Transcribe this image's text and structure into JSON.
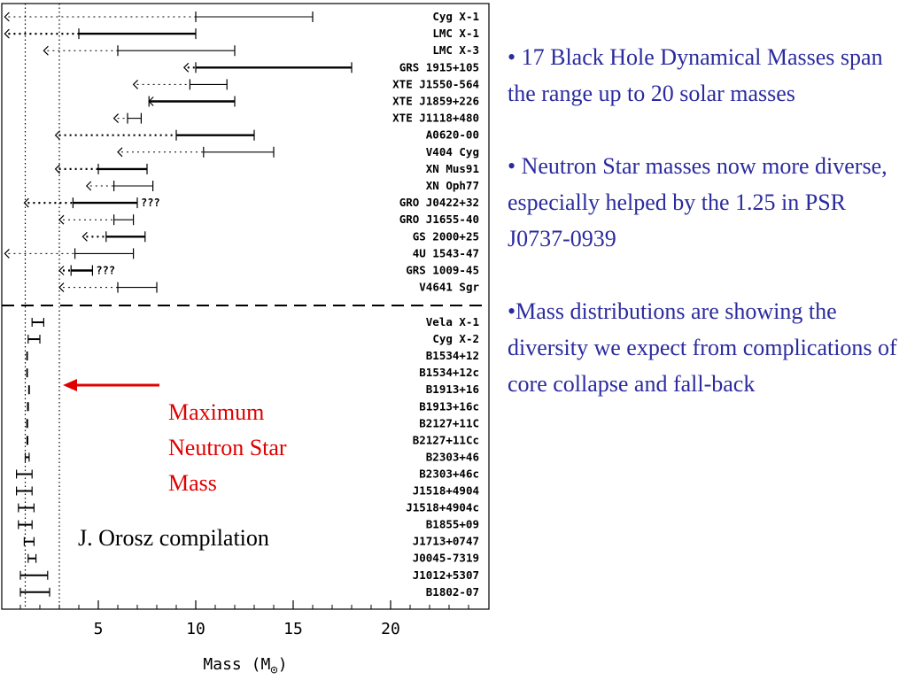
{
  "chart_data": {
    "type": "interval",
    "xlabel": "Mass (M",
    "xlabel_sub": "⊙",
    "xlabel_close": ")",
    "xlim": [
      0,
      24.5
    ],
    "xticks": [
      5,
      10,
      15,
      20
    ],
    "reference_lines": [
      1.25,
      3.0
    ],
    "black_holes": [
      {
        "name": "Cyg X-1",
        "limit_from": 0.2,
        "lo": 10.0,
        "hi": 16.0,
        "bold": false
      },
      {
        "name": "LMC X-1",
        "limit_from": 0.2,
        "lo": 4.0,
        "hi": 10.0,
        "bold": true
      },
      {
        "name": "LMC X-3",
        "limit_from": 2.2,
        "lo": 6.0,
        "hi": 12.0,
        "bold": false
      },
      {
        "name": "GRS 1915+105",
        "limit_from": 9.4,
        "lo": 10.0,
        "hi": 18.0,
        "bold": true
      },
      {
        "name": "XTE J1550-564",
        "limit_from": 6.8,
        "lo": 9.7,
        "hi": 11.6,
        "bold": false
      },
      {
        "name": "XTE J1859+226",
        "limit_from": 7.6,
        "lo": 7.6,
        "hi": 12.0,
        "bold": true
      },
      {
        "name": "XTE J1118+480",
        "limit_from": 5.8,
        "lo": 6.5,
        "hi": 7.2,
        "bold": false
      },
      {
        "name": "A0620-00",
        "limit_from": 2.8,
        "lo": 9.0,
        "hi": 13.0,
        "bold": true
      },
      {
        "name": "V404 Cyg",
        "limit_from": 6.0,
        "lo": 10.4,
        "hi": 14.0,
        "bold": false
      },
      {
        "name": "XN Mus91",
        "limit_from": 2.8,
        "lo": 5.0,
        "hi": 7.5,
        "bold": true
      },
      {
        "name": "XN Oph77",
        "limit_from": 4.4,
        "lo": 5.8,
        "hi": 7.8,
        "bold": false
      },
      {
        "name": "GRO J0422+32",
        "limit_from": 1.2,
        "lo": 3.7,
        "hi": 7.0,
        "bold": true,
        "note": "???"
      },
      {
        "name": "GRO J1655-40",
        "limit_from": 3.0,
        "lo": 5.8,
        "hi": 6.8,
        "bold": false
      },
      {
        "name": "GS 2000+25",
        "limit_from": 4.2,
        "lo": 5.4,
        "hi": 7.4,
        "bold": true
      },
      {
        "name": "4U 1543-47",
        "limit_from": 0.2,
        "lo": 3.8,
        "hi": 6.8,
        "bold": false
      },
      {
        "name": "GRS 1009-45",
        "limit_from": 3.0,
        "lo": 3.6,
        "hi": 4.7,
        "bold": true,
        "note": "???"
      },
      {
        "name": "V4641 Sgr",
        "limit_from": 3.0,
        "lo": 6.0,
        "hi": 8.0,
        "bold": false
      }
    ],
    "neutron_stars": [
      {
        "name": "Vela X-1",
        "lo": 1.6,
        "hi": 2.2
      },
      {
        "name": "Cyg X-2",
        "lo": 1.4,
        "hi": 2.0
      },
      {
        "name": "B1534+12",
        "lo": 1.33,
        "hi": 1.36
      },
      {
        "name": "B1534+12c",
        "lo": 1.33,
        "hi": 1.36
      },
      {
        "name": "B1913+16",
        "lo": 1.43,
        "hi": 1.46
      },
      {
        "name": "B1913+16c",
        "lo": 1.37,
        "hi": 1.41
      },
      {
        "name": "B2127+11C",
        "lo": 1.33,
        "hi": 1.37
      },
      {
        "name": "B2127+11Cc",
        "lo": 1.34,
        "hi": 1.38
      },
      {
        "name": "B2303+46",
        "lo": 1.25,
        "hi": 1.45
      },
      {
        "name": "B2303+46c",
        "lo": 0.8,
        "hi": 1.6
      },
      {
        "name": "J1518+4904",
        "lo": 0.8,
        "hi": 1.6
      },
      {
        "name": "J1518+4904c",
        "lo": 0.9,
        "hi": 1.7
      },
      {
        "name": "B1855+09",
        "lo": 0.9,
        "hi": 1.6
      },
      {
        "name": "J1713+0747",
        "lo": 1.2,
        "hi": 1.7
      },
      {
        "name": "J0045-7319",
        "lo": 1.4,
        "hi": 1.8
      },
      {
        "name": "J1012+5307",
        "lo": 1.0,
        "hi": 2.4
      },
      {
        "name": "B1802-07",
        "lo": 1.0,
        "hi": 2.5
      }
    ]
  },
  "annotations": {
    "max_ns_label": [
      "Maximum",
      "Neutron Star",
      "Mass"
    ],
    "credit": "J. Orosz compilation"
  },
  "colors": {
    "arrow": "#e00000",
    "bullet_text": "#2b2b9e"
  },
  "bullets": [
    "• 17 Black Hole Dynamical Masses span the range up to 20 solar masses",
    "• Neutron Star masses now more diverse, especially helped by the 1.25 in PSR J0737-0939",
    "•Mass distributions are showing the diversity we expect from complications of core collapse and fall-back"
  ]
}
